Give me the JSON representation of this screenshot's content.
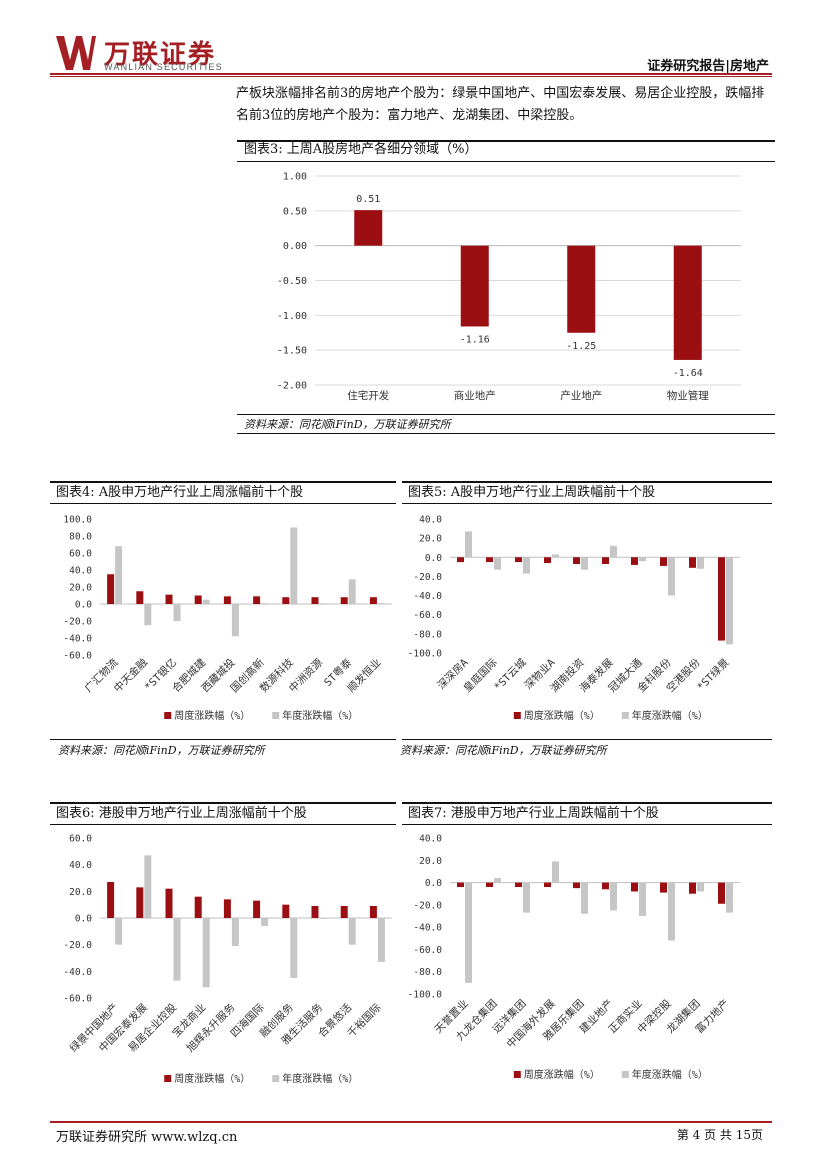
{
  "header": {
    "brand_cn": "万联证券",
    "brand_en": "WANLIAN SECURITIES",
    "report_type": "证券研究报告|房地产"
  },
  "intro_text": "产板块涨幅排名前3的房地产个股为：绿景中国地产、中国宏泰发展、易居企业控股，跌幅排名前3位的房地产个股为：富力地产、龙湖集团、中梁控股。",
  "figures": {
    "fig3": {
      "title": "图表3:  上周A股房地产各细分领域（%）",
      "source": "资料来源：同花顺iFinD，万联证券研究所"
    },
    "fig4": {
      "title": "图表4:  A股申万地产行业上周涨幅前十个股",
      "source": "资料来源：同花顺iFinD，万联证券研究所"
    },
    "fig5": {
      "title": "图表5:  A股申万地产行业上周跌幅前十个股",
      "source": "资料来源：同花顺iFinD，万联证券研究所"
    },
    "fig6": {
      "title": "图表6:  港股申万地产行业上周涨幅前十个股"
    },
    "fig7": {
      "title": "图表7:  港股申万地产行业上周跌幅前十个股"
    }
  },
  "footer": {
    "left": "万联证券研究所  www.wlzq.cn",
    "right": "第 4 页 共 15页"
  },
  "colors": {
    "brand": "#a31f24",
    "weekly": "#9b0e12",
    "yearly": "#c6c6c6"
  },
  "chart_data": [
    {
      "id": "fig3",
      "type": "bar",
      "categories": [
        "住宅开发",
        "商业地产",
        "产业地产",
        "物业管理"
      ],
      "values": [
        0.51,
        -1.16,
        -1.25,
        -1.64
      ],
      "labels": [
        "0.51",
        "-1.16",
        "-1.25",
        "-1.64"
      ],
      "ylim": [
        -2.0,
        1.0
      ],
      "yticks": [
        "1.00",
        "0.50",
        "0.00",
        "-0.50",
        "-1.00",
        "-1.50",
        "-2.00"
      ],
      "ytick_values": [
        1.0,
        0.5,
        0.0,
        -0.5,
        -1.0,
        -1.5,
        -2.0
      ]
    },
    {
      "id": "fig4",
      "type": "bar",
      "categories": [
        "广汇物流",
        "中天金融",
        "*ST银亿",
        "合肥城建",
        "西藏城投",
        "国创高新",
        "数源科技",
        "中洲资源",
        "ST粤泰",
        "顺发恒业"
      ],
      "series": [
        {
          "name": "周度涨跌幅（%）",
          "values": [
            35,
            15,
            11,
            10,
            9,
            9,
            8,
            8,
            8,
            8
          ]
        },
        {
          "name": "年度涨跌幅（%）",
          "values": [
            68,
            -25,
            -20,
            5,
            -38,
            1,
            90,
            0,
            29,
            1
          ]
        }
      ],
      "ylim": [
        -60,
        100
      ],
      "yticks": [
        "100.0",
        "80.0",
        "60.0",
        "40.0",
        "20.0",
        "0.0",
        "-20.0",
        "-40.0",
        "-60.0"
      ],
      "ytick_values": [
        100,
        80,
        60,
        40,
        20,
        0,
        -20,
        -40,
        -60
      ]
    },
    {
      "id": "fig5",
      "type": "bar",
      "categories": [
        "深深房A",
        "皇庭国际",
        "*ST云城",
        "深物业A",
        "湖南投资",
        "海泰发展",
        "冠城大通",
        "金科股份",
        "空港股份",
        "*ST绿景"
      ],
      "series": [
        {
          "name": "周度涨跌幅（%）",
          "values": [
            -5,
            -5,
            -5,
            -6,
            -7,
            -7,
            -8,
            -9,
            -11,
            -87
          ]
        },
        {
          "name": "年度涨跌幅（%）",
          "values": [
            27,
            -13,
            -17,
            3,
            -13,
            12,
            -4,
            -40,
            -12,
            -91
          ]
        }
      ],
      "ylim": [
        -100,
        40
      ],
      "yticks": [
        "40.0",
        "20.0",
        "0.0",
        "-20.0",
        "-40.0",
        "-60.0",
        "-80.0",
        "-100.0"
      ],
      "ytick_values": [
        40,
        20,
        0,
        -20,
        -40,
        -60,
        -80,
        -100
      ]
    },
    {
      "id": "fig6",
      "type": "bar",
      "categories": [
        "绿景中国地产",
        "中国宏泰发展",
        "易居企业控股",
        "宝龙商业",
        "旭辉永升服务",
        "四海国际",
        "融创服务",
        "雅生活服务",
        "合景悠活",
        "千裕国际"
      ],
      "series": [
        {
          "name": "周度涨跌幅（%）",
          "values": [
            27,
            23,
            22,
            16,
            14,
            13,
            10,
            9,
            9,
            9
          ]
        },
        {
          "name": "年度涨跌幅（%）",
          "values": [
            -20,
            47,
            -47,
            -52,
            -21,
            -6,
            -45,
            0,
            -20,
            -33
          ]
        }
      ],
      "ylim": [
        -60,
        60
      ],
      "yticks": [
        "60.0",
        "40.0",
        "20.0",
        "0.0",
        "-20.0",
        "-40.0",
        "-60.0"
      ],
      "ytick_values": [
        60,
        40,
        20,
        0,
        -20,
        -40,
        -60
      ]
    },
    {
      "id": "fig7",
      "type": "bar",
      "categories": [
        "天誉置业",
        "九龙仓集团",
        "远洋集团",
        "中国海外发展",
        "雅居乐集团",
        "建业地产",
        "正商实业",
        "中梁控股",
        "龙湖集团",
        "富力地产"
      ],
      "series": [
        {
          "name": "周度涨跌幅（%）",
          "values": [
            -4,
            -4,
            -4,
            -4,
            -5,
            -6,
            -8,
            -9,
            -10,
            -19
          ]
        },
        {
          "name": "年度涨跌幅（%）",
          "values": [
            -90,
            4,
            -27,
            19,
            -28,
            -25,
            -30,
            -52,
            -8,
            -27
          ]
        }
      ],
      "ylim": [
        -100,
        40
      ],
      "yticks": [
        "40.0",
        "20.0",
        "0.0",
        "-20.0",
        "-40.0",
        "-60.0",
        "-80.0",
        "-100.0"
      ],
      "ytick_values": [
        40,
        20,
        0,
        -20,
        -40,
        -60,
        -80,
        -100
      ]
    }
  ]
}
